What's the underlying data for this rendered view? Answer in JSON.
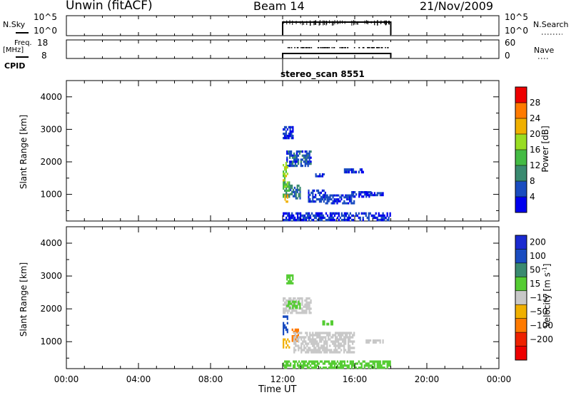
{
  "header": {
    "station": "Unwin (fitACF)",
    "beam": "Beam 14",
    "date": "21/Nov/2009"
  },
  "strip1": {
    "left_label": "N.Sky",
    "right_label": "N.Search",
    "left_ticks": [
      "10^5",
      "10^0"
    ],
    "right_ticks": [
      "10^5",
      "10^0"
    ]
  },
  "strip2": {
    "left_label_top": "Freq.",
    "left_label_bottom": "[MHz]",
    "right_label": "Nave",
    "left_ticks": [
      "18",
      "8"
    ],
    "right_ticks": [
      "60",
      "0"
    ]
  },
  "cpid": {
    "label": "CPID",
    "value": "stereo_scan 8551"
  },
  "x_axis": {
    "label": "Time UT",
    "ticks": [
      "00:00",
      "04:00",
      "08:00",
      "12:00",
      "16:00",
      "20:00",
      "00:00"
    ]
  },
  "power_colorbar": {
    "label": "Power [dB]",
    "ticks": [
      "4",
      "8",
      "12",
      "16",
      "20",
      "24",
      "28"
    ],
    "colors": [
      "#0000ee",
      "#1a4cc0",
      "#3a8a70",
      "#44bb44",
      "#99dd22",
      "#f0b000",
      "#ff7a00",
      "#ee0000"
    ]
  },
  "velocity_colorbar": {
    "label_main": "Velocity [m s",
    "label_sup": "-1",
    "label_end": "]",
    "ticks": [
      "200",
      "100",
      "50",
      "15",
      "-15",
      "-50",
      "-100",
      "-200"
    ],
    "colors": [
      "#1a2ad0",
      "#1a4cc0",
      "#3a8a70",
      "#55cc33",
      "#c8c8c8",
      "#f0b000",
      "#ff7a00",
      "#ee2200",
      "#ee0000"
    ]
  },
  "chart_data": [
    {
      "type": "heatmap",
      "title": "Beam 14",
      "xlabel": "Time UT",
      "ylabel": "Slant Range [km]",
      "x_ticks": [
        "00:00",
        "04:00",
        "08:00",
        "12:00",
        "16:00",
        "20:00",
        "00:00"
      ],
      "xlim_hours": [
        0,
        24
      ],
      "y_ticks": [
        1000,
        2000,
        3000,
        4000
      ],
      "ylim": [
        180,
        4500
      ],
      "data_time_range_hours": [
        12,
        18
      ],
      "colorbar": "Power [dB]",
      "blobs": [
        {
          "t0": 12.0,
          "t1": 12.6,
          "r0": 2700,
          "r1": 3100,
          "value": 4
        },
        {
          "t0": 12.2,
          "t1": 13.6,
          "r0": 1850,
          "r1": 2350,
          "value": 6
        },
        {
          "t0": 12.0,
          "t1": 12.3,
          "r0": 1200,
          "r1": 2000,
          "value": 18
        },
        {
          "t0": 12.0,
          "t1": 12.4,
          "r0": 900,
          "r1": 1400,
          "value": 12
        },
        {
          "t0": 12.1,
          "t1": 12.3,
          "r0": 750,
          "r1": 1000,
          "value": 22
        },
        {
          "t0": 12.4,
          "t1": 13.0,
          "r0": 850,
          "r1": 1300,
          "value": 8
        },
        {
          "t0": 13.4,
          "t1": 14.4,
          "r0": 750,
          "r1": 1150,
          "value": 5
        },
        {
          "t0": 14.2,
          "t1": 16.0,
          "r0": 700,
          "r1": 1000,
          "value": 5
        },
        {
          "t0": 15.8,
          "t1": 17.0,
          "r0": 900,
          "r1": 1100,
          "value": 4
        },
        {
          "t0": 13.8,
          "t1": 14.4,
          "r0": 1530,
          "r1": 1650,
          "value": 4
        },
        {
          "t0": 15.4,
          "t1": 16.5,
          "r0": 1650,
          "r1": 1800,
          "value": 4
        },
        {
          "t0": 16.6,
          "t1": 17.6,
          "r0": 950,
          "r1": 1070,
          "value": 4
        },
        {
          "t0": 12.0,
          "t1": 18.0,
          "r0": 180,
          "r1": 450,
          "value": 4
        }
      ]
    },
    {
      "type": "heatmap",
      "xlabel": "Time UT",
      "ylabel": "Slant Range [km]",
      "x_ticks": [
        "00:00",
        "04:00",
        "08:00",
        "12:00",
        "16:00",
        "20:00",
        "00:00"
      ],
      "xlim_hours": [
        0,
        24
      ],
      "y_ticks": [
        1000,
        2000,
        3000,
        4000
      ],
      "ylim": [
        180,
        4500
      ],
      "data_time_range_hours": [
        12,
        18
      ],
      "colorbar": "Velocity [m s-1]",
      "blobs": [
        {
          "t0": 12.2,
          "t1": 12.6,
          "r0": 2750,
          "r1": 3050,
          "value": 30
        },
        {
          "t0": 12.0,
          "t1": 13.6,
          "r0": 1850,
          "r1": 2350,
          "value": 0
        },
        {
          "t0": 12.2,
          "t1": 13.0,
          "r0": 2000,
          "r1": 2250,
          "value": 30
        },
        {
          "t0": 12.0,
          "t1": 12.3,
          "r0": 1200,
          "r1": 1800,
          "value": 150
        },
        {
          "t0": 12.0,
          "t1": 12.4,
          "r0": 800,
          "r1": 1100,
          "value": -30
        },
        {
          "t0": 12.5,
          "t1": 12.9,
          "r0": 1000,
          "r1": 1400,
          "value": -70
        },
        {
          "t0": 12.6,
          "t1": 16.0,
          "r0": 650,
          "r1": 1300,
          "value": 0
        },
        {
          "t0": 14.2,
          "t1": 14.8,
          "r0": 1500,
          "r1": 1650,
          "value": 30
        },
        {
          "t0": 16.6,
          "t1": 17.6,
          "r0": 950,
          "r1": 1070,
          "value": 0
        },
        {
          "t0": 12.0,
          "t1": 18.0,
          "r0": 180,
          "r1": 430,
          "value": 30
        }
      ]
    }
  ]
}
